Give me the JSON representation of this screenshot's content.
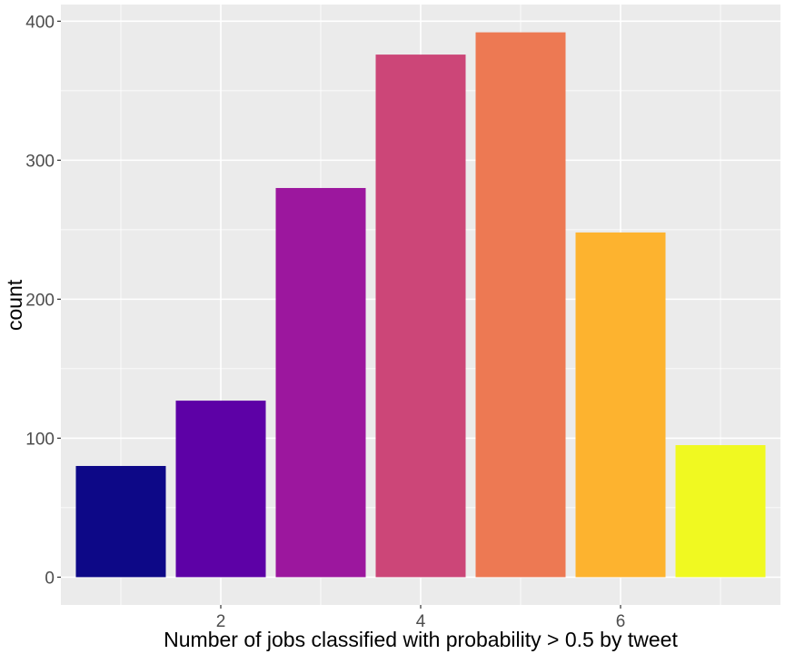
{
  "chart_data": {
    "type": "bar",
    "x": [
      1,
      2,
      3,
      4,
      5,
      6,
      7
    ],
    "values": [
      80,
      127,
      280,
      376,
      392,
      248,
      95
    ],
    "colors": [
      "#0D0887",
      "#5D01A6",
      "#9C179E",
      "#CC4678",
      "#ED7953",
      "#FDB32F",
      "#F0F921"
    ],
    "xlabel": "Number of jobs classified with probability > 0.5 by tweet",
    "ylabel": "count",
    "xticks": [
      2,
      4,
      6
    ],
    "yticks": [
      0,
      100,
      200,
      300,
      400
    ],
    "xlim": [
      0.4,
      7.6
    ],
    "ylim": [
      -20,
      412
    ],
    "panel_background": "#EBEBEB",
    "grid_color": "#FFFFFF",
    "legend": "none"
  }
}
